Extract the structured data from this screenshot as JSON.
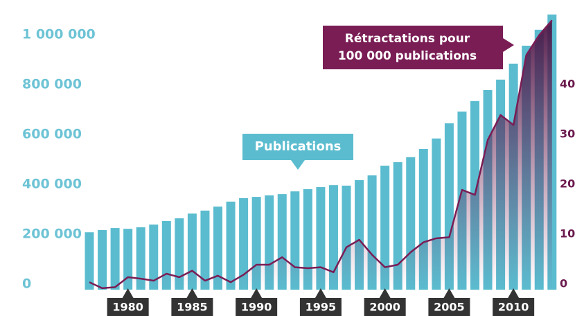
{
  "chart_data": {
    "type": "bar",
    "categories": [
      null,
      null,
      null,
      "1980",
      null,
      null,
      null,
      null,
      "1985",
      null,
      null,
      null,
      null,
      "1990",
      null,
      null,
      null,
      null,
      "1995",
      null,
      null,
      null,
      null,
      "2000",
      null,
      null,
      null,
      null,
      "2005",
      null,
      null,
      null,
      null,
      "2010",
      null,
      null,
      null
    ],
    "series": [
      {
        "name": "Publications",
        "type": "bar",
        "color": "#5bbccf",
        "values": [
          230000,
          239000,
          247000,
          244000,
          250000,
          261000,
          275000,
          286000,
          305000,
          317000,
          333000,
          353000,
          367000,
          372000,
          378000,
          383000,
          394000,
          403000,
          411000,
          419000,
          417000,
          439000,
          458000,
          497000,
          511000,
          531000,
          564000,
          606000,
          667000,
          714000,
          756000,
          800000,
          842000,
          906000,
          978000,
          1042000,
          1103000
        ]
      },
      {
        "name": "Rétractations pour 100 000 publications",
        "type": "line",
        "axis": "y2",
        "color": "#7a1d55",
        "values": [
          1.5,
          0.3,
          0.5,
          2.5,
          2.2,
          1.8,
          3.2,
          2.5,
          3.8,
          1.8,
          2.8,
          1.5,
          3.0,
          5.0,
          5.0,
          6.5,
          4.5,
          4.3,
          4.5,
          3.5,
          8.5,
          10.0,
          7.0,
          4.5,
          5.0,
          7.5,
          9.5,
          10.3,
          10.5,
          20.0,
          19.0,
          30.0,
          35.0,
          33.0,
          47.0,
          51.0,
          54.0
        ]
      }
    ],
    "annotations": {
      "publications": "Publications",
      "retractations": [
        "Rétractations pour",
        "100 000 publications"
      ]
    },
    "ylim": [
      0,
      1150000
    ],
    "yticks": [
      0,
      {
        "value": 200000,
        "label": "200 000"
      },
      {
        "value": 400000,
        "label": "400 000"
      },
      {
        "value": 600000,
        "label": "600 000"
      },
      {
        "value": 800000,
        "label": "800 000"
      },
      {
        "value": 1000000,
        "label": "1 000 000"
      }
    ],
    "y2lim": [
      0,
      57.5
    ],
    "y2ticks": [
      0,
      10,
      20,
      30,
      40
    ],
    "grid": false
  }
}
